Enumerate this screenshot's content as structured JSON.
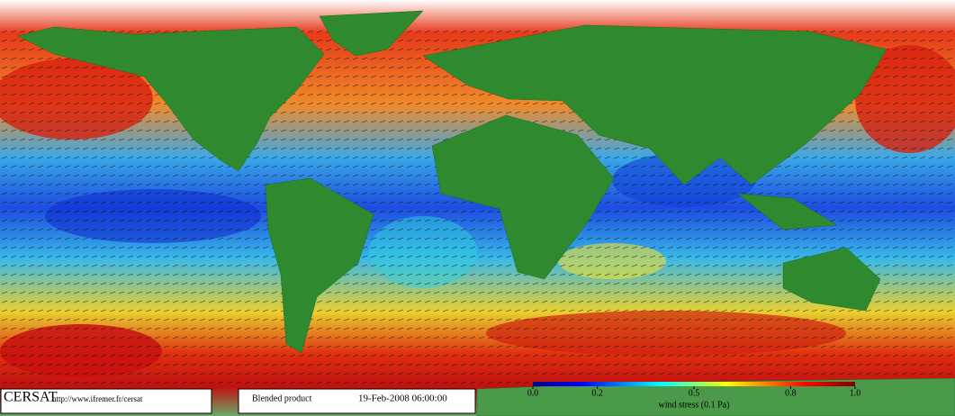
{
  "footer": {
    "logo": "CERSAT",
    "url": "http://www.ifremer.fr/cersat",
    "product": "Blended product",
    "date": "19-Feb-2008 06:00:00"
  },
  "colorbar": {
    "label": "wind stress (0.1 Pa)",
    "lim": [
      0,
      1
    ],
    "ticks": [
      {
        "value": 0,
        "label": "0.0"
      },
      0.2,
      0.5,
      0.8,
      {
        "value": 1,
        "label": "1.0"
      }
    ]
  }
}
